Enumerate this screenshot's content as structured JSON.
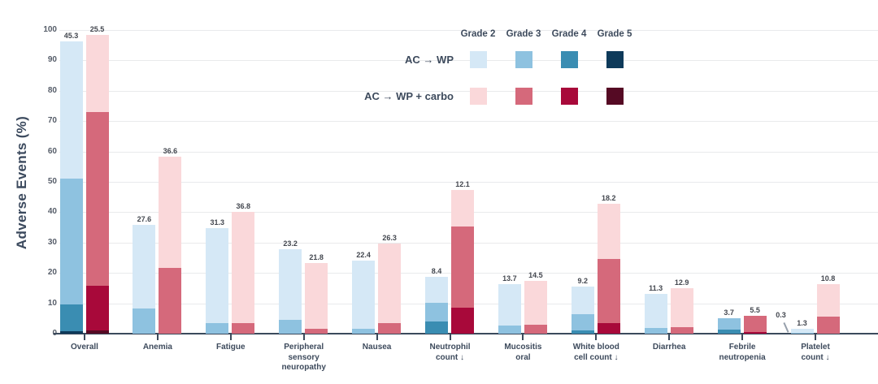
{
  "chart_data": {
    "type": "bar",
    "stacked": true,
    "ylabel": "Adverse Events (%)",
    "ylim": [
      0,
      100
    ],
    "ytick_step": 10,
    "grid": true,
    "legend_position": "top-right",
    "grades": [
      "Grade 2",
      "Grade 3",
      "Grade 4",
      "Grade 5"
    ],
    "arms": [
      {
        "name": "AC → WP",
        "colors": {
          "2": "#d5e8f6",
          "3": "#8ec2e0",
          "4": "#3a8db2",
          "5": "#0e3a5a"
        }
      },
      {
        "name": "AC → WP + carbo",
        "colors": {
          "2": "#fad8da",
          "3": "#d5697b",
          "4": "#a8093a",
          "5": "#550a24"
        }
      }
    ],
    "categories": [
      {
        "label": "Overall",
        "bars": [
          {
            "arm": 0,
            "segments": [
              {
                "grade": 5,
                "value": 0.8,
                "inverse": true
              },
              {
                "grade": 4,
                "value": 8.9
              },
              {
                "grade": 3,
                "value": 41.3
              },
              {
                "grade": 2,
                "value": 45.3
              }
            ]
          },
          {
            "arm": 1,
            "segments": [
              {
                "grade": 5,
                "value": 1.1,
                "inverse": true
              },
              {
                "grade": 4,
                "value": 14.7
              },
              {
                "grade": 3,
                "value": 57.1
              },
              {
                "grade": 2,
                "value": 25.5
              }
            ]
          }
        ]
      },
      {
        "label": "Anemia",
        "bars": [
          {
            "arm": 0,
            "segments": [
              {
                "grade": 3,
                "value": 8.2
              },
              {
                "grade": 2,
                "value": 27.6
              }
            ]
          },
          {
            "arm": 1,
            "segments": [
              {
                "grade": 3,
                "value": 21.6
              },
              {
                "grade": 2,
                "value": 36.6
              }
            ]
          }
        ]
      },
      {
        "label": "Fatigue",
        "bars": [
          {
            "arm": 0,
            "segments": [
              {
                "grade": 3,
                "value": 3.4
              },
              {
                "grade": 2,
                "value": 31.3
              }
            ]
          },
          {
            "arm": 1,
            "segments": [
              {
                "grade": 3,
                "value": 3.4
              },
              {
                "grade": 2,
                "value": 36.8
              }
            ]
          }
        ]
      },
      {
        "label": "Peripheral\nsensory\nneuropathy",
        "bars": [
          {
            "arm": 0,
            "segments": [
              {
                "grade": 3,
                "value": 4.5
              },
              {
                "grade": 2,
                "value": 23.2
              }
            ]
          },
          {
            "arm": 1,
            "segments": [
              {
                "grade": 3,
                "value": 1.6
              },
              {
                "grade": 2,
                "value": 21.8
              }
            ]
          }
        ]
      },
      {
        "label": "Nausea",
        "bars": [
          {
            "arm": 0,
            "segments": [
              {
                "grade": 3,
                "value": 1.6
              },
              {
                "grade": 2,
                "value": 22.4
              }
            ]
          },
          {
            "arm": 1,
            "segments": [
              {
                "grade": 3,
                "value": 3.4
              },
              {
                "grade": 2,
                "value": 26.3
              }
            ]
          }
        ]
      },
      {
        "label": "Neutrophil\ncount ↓",
        "bars": [
          {
            "arm": 0,
            "segments": [
              {
                "grade": 4,
                "value": 3.9
              },
              {
                "grade": 3,
                "value": 6.3
              },
              {
                "grade": 2,
                "value": 8.4
              }
            ]
          },
          {
            "arm": 1,
            "segments": [
              {
                "grade": 4,
                "value": 8.7
              },
              {
                "grade": 3,
                "value": 26.6
              },
              {
                "grade": 2,
                "value": 12.1
              }
            ]
          }
        ]
      },
      {
        "label": "Mucositis\noral",
        "bars": [
          {
            "arm": 0,
            "segments": [
              {
                "grade": 3,
                "value": 2.6
              },
              {
                "grade": 2,
                "value": 13.7
              }
            ]
          },
          {
            "arm": 1,
            "segments": [
              {
                "grade": 3,
                "value": 2.9
              },
              {
                "grade": 2,
                "value": 14.5
              }
            ]
          }
        ]
      },
      {
        "label": "White blood\ncell count ↓",
        "bars": [
          {
            "arm": 0,
            "segments": [
              {
                "grade": 4,
                "value": 1.1
              },
              {
                "grade": 3,
                "value": 5.3
              },
              {
                "grade": 2,
                "value": 9.2
              }
            ]
          },
          {
            "arm": 1,
            "segments": [
              {
                "grade": 4,
                "value": 3.4
              },
              {
                "grade": 3,
                "value": 21.1
              },
              {
                "grade": 2,
                "value": 18.2
              }
            ]
          }
        ]
      },
      {
        "label": "Diarrhea",
        "bars": [
          {
            "arm": 0,
            "segments": [
              {
                "grade": 3,
                "value": 1.8
              },
              {
                "grade": 2,
                "value": 11.3
              }
            ]
          },
          {
            "arm": 1,
            "segments": [
              {
                "grade": 3,
                "value": 2.1
              },
              {
                "grade": 2,
                "value": 12.9
              }
            ]
          }
        ]
      },
      {
        "label": "Febrile\nneutropenia",
        "bars": [
          {
            "arm": 0,
            "segments": [
              {
                "grade": 4,
                "value": 1.3
              },
              {
                "grade": 3,
                "value": 3.7
              }
            ]
          },
          {
            "arm": 1,
            "segments": [
              {
                "grade": 4,
                "value": 0.5,
                "inverse": true
              },
              {
                "grade": 3,
                "value": 5.5
              }
            ]
          }
        ]
      },
      {
        "label": "Platelet\ncount ↓",
        "bars": [
          {
            "arm": 0,
            "segments": [
              {
                "grade": 3,
                "value": 0.3,
                "callout": true
              },
              {
                "grade": 2,
                "value": 1.3
              }
            ]
          },
          {
            "arm": 1,
            "segments": [
              {
                "grade": 3,
                "value": 5.5
              },
              {
                "grade": 2,
                "value": 10.8
              }
            ]
          }
        ]
      }
    ]
  },
  "text_colors": {
    "axis_label": "#3c4a5e",
    "tick_label": "#565d69",
    "bar_label": "#43474f",
    "gridline": "#e9eaec",
    "axis_line": "#3b4a5c"
  }
}
